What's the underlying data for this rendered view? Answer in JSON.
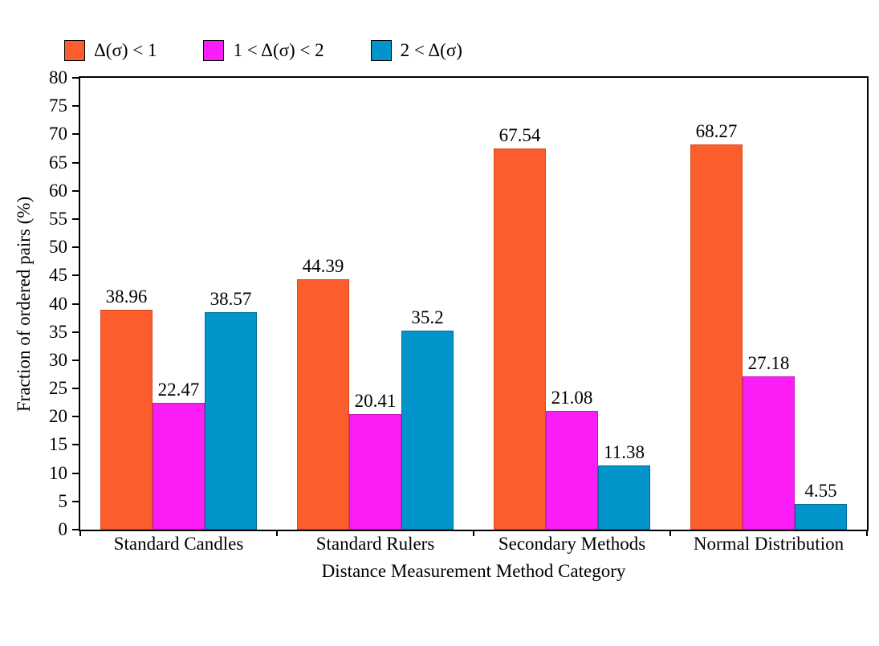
{
  "page": {
    "background_color": "#ffffff",
    "text_color": "#000000",
    "axis_color": "#000000"
  },
  "chart_data": {
    "type": "bar",
    "title": "",
    "categories": [
      "Standard Candles",
      "Standard Rulers",
      "Secondary Methods",
      "Normal Distribution"
    ],
    "series": [
      {
        "name": "Δ(σ) < 1",
        "color": "#FB5D2D",
        "border_color": "#D9481C",
        "values": [
          38.96,
          44.39,
          67.54,
          68.27
        ],
        "value_labels": [
          "38.96",
          "44.39",
          "67.54",
          "68.27"
        ]
      },
      {
        "name": "1 < Δ(σ) < 2",
        "color": "#FA1DF5",
        "border_color": "#C715C2",
        "values": [
          22.47,
          20.41,
          21.08,
          27.18
        ],
        "value_labels": [
          "22.47",
          "20.41",
          "21.08",
          "27.18"
        ]
      },
      {
        "name": "2 < Δ(σ)",
        "color": "#0295CB",
        "border_color": "#016E97",
        "values": [
          38.57,
          35.2,
          11.38,
          4.55
        ],
        "value_labels": [
          "38.57",
          "35.2",
          "11.38",
          "4.55"
        ]
      }
    ],
    "xlabel": "Distance Measurement Method Category",
    "ylabel": "Fraction of ordered pairs (%)",
    "ylim": [
      0,
      80
    ],
    "yticks": [
      0,
      5,
      10,
      15,
      20,
      25,
      30,
      35,
      40,
      45,
      50,
      55,
      60,
      65,
      70,
      75,
      80
    ],
    "grid": false,
    "legend_position": "top-left",
    "bar_value_labels_shown": true
  }
}
